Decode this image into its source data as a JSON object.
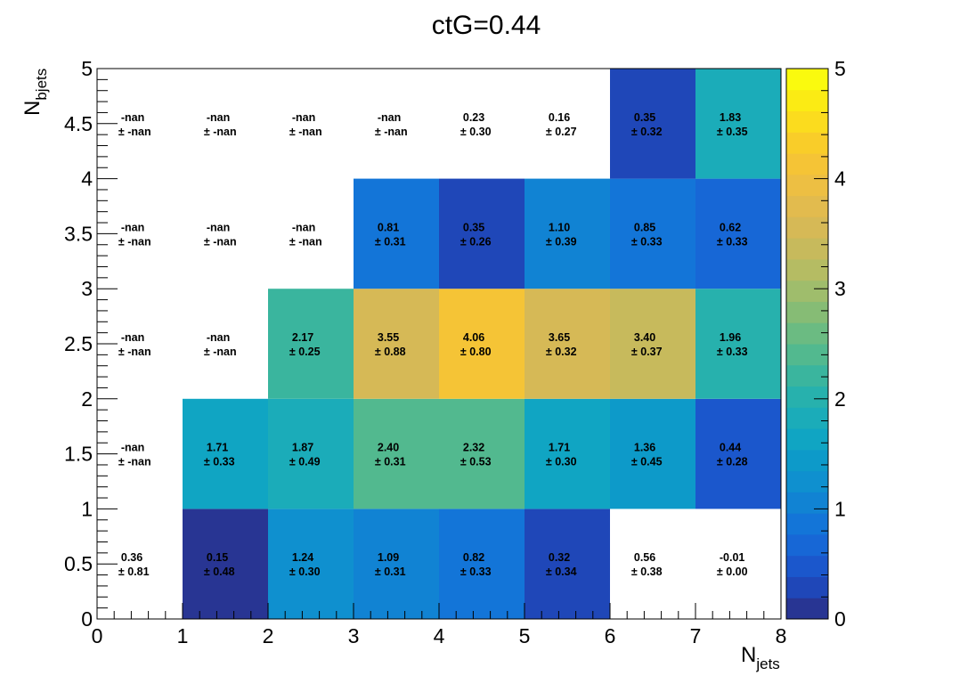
{
  "chart_data": {
    "type": "heatmap",
    "title": "ctG=0.44",
    "xlabel": {
      "main": "N",
      "sub": "jets"
    },
    "ylabel": {
      "main": "N",
      "sub": "bjets"
    },
    "xlim": [
      0,
      8
    ],
    "ylim": [
      0,
      5
    ],
    "zlim": [
      0,
      5
    ],
    "x_ticks": [
      "0",
      "1",
      "2",
      "3",
      "4",
      "5",
      "6",
      "7",
      "8"
    ],
    "y_ticks": [
      "0",
      "0.5",
      "1",
      "1.5",
      "2",
      "2.5",
      "3",
      "3.5",
      "4",
      "4.5",
      "5"
    ],
    "z_ticks": [
      "0",
      "1",
      "2",
      "3",
      "4",
      "5"
    ],
    "grid": false,
    "colorbar": "right",
    "palette": [
      "#283593",
      "#1f47b8",
      "#1b57cc",
      "#1767d6",
      "#1375d8",
      "#1183d3",
      "#0f90cf",
      "#0d9ac9",
      "#10a5c3",
      "#1bacb9",
      "#27b1ad",
      "#3ab59e",
      "#52b98f",
      "#6bbb82",
      "#86bc75",
      "#9fbd6c",
      "#b5bc63",
      "#c7ba5c",
      "#d6b956",
      "#e2bb4e",
      "#edbf43",
      "#f5c436",
      "#f9cd29",
      "#fbdc1e",
      "#fbeb14",
      "#fafa0e"
    ],
    "cell_values": [
      [
        "0.36",
        "0.15",
        "1.24",
        "1.09",
        "0.82",
        "0.32",
        "0.56",
        "-0.01"
      ],
      [
        "-nan",
        "1.71",
        "1.87",
        "2.40",
        "2.32",
        "1.71",
        "1.36",
        "0.44"
      ],
      [
        "-nan",
        "-nan",
        "2.17",
        "3.55",
        "4.06",
        "3.65",
        "3.40",
        "1.96"
      ],
      [
        "-nan",
        "-nan",
        "-nan",
        "0.81",
        "0.35",
        "1.10",
        "0.85",
        "0.62"
      ],
      [
        "-nan",
        "-nan",
        "-nan",
        "-nan",
        "0.23",
        "0.16",
        "0.35",
        "1.83"
      ]
    ],
    "cell_errors": [
      [
        "± 0.81",
        "± 0.48",
        "± 0.30",
        "± 0.31",
        "± 0.33",
        "± 0.34",
        "± 0.38",
        "± 0.00"
      ],
      [
        "± -nan",
        "± 0.33",
        "± 0.49",
        "± 0.31",
        "± 0.53",
        "± 0.30",
        "± 0.45",
        "± 0.28"
      ],
      [
        "± -nan",
        "± -nan",
        "± 0.25",
        "± 0.88",
        "± 0.80",
        "± 0.32",
        "± 0.37",
        "± 0.33"
      ],
      [
        "± -nan",
        "± -nan",
        "± -nan",
        "± 0.31",
        "± 0.26",
        "± 0.39",
        "± 0.33",
        "± 0.33"
      ],
      [
        "± -nan",
        "± -nan",
        "± -nan",
        "± -nan",
        "± 0.30",
        "± 0.27",
        "± 0.32",
        "± 0.35"
      ]
    ],
    "filled": [
      [
        false,
        true,
        true,
        true,
        true,
        true,
        false,
        false
      ],
      [
        false,
        true,
        true,
        true,
        true,
        true,
        true,
        true
      ],
      [
        false,
        false,
        true,
        true,
        true,
        true,
        true,
        true
      ],
      [
        false,
        false,
        false,
        true,
        true,
        true,
        true,
        true
      ],
      [
        false,
        false,
        false,
        false,
        false,
        false,
        true,
        true
      ]
    ]
  }
}
